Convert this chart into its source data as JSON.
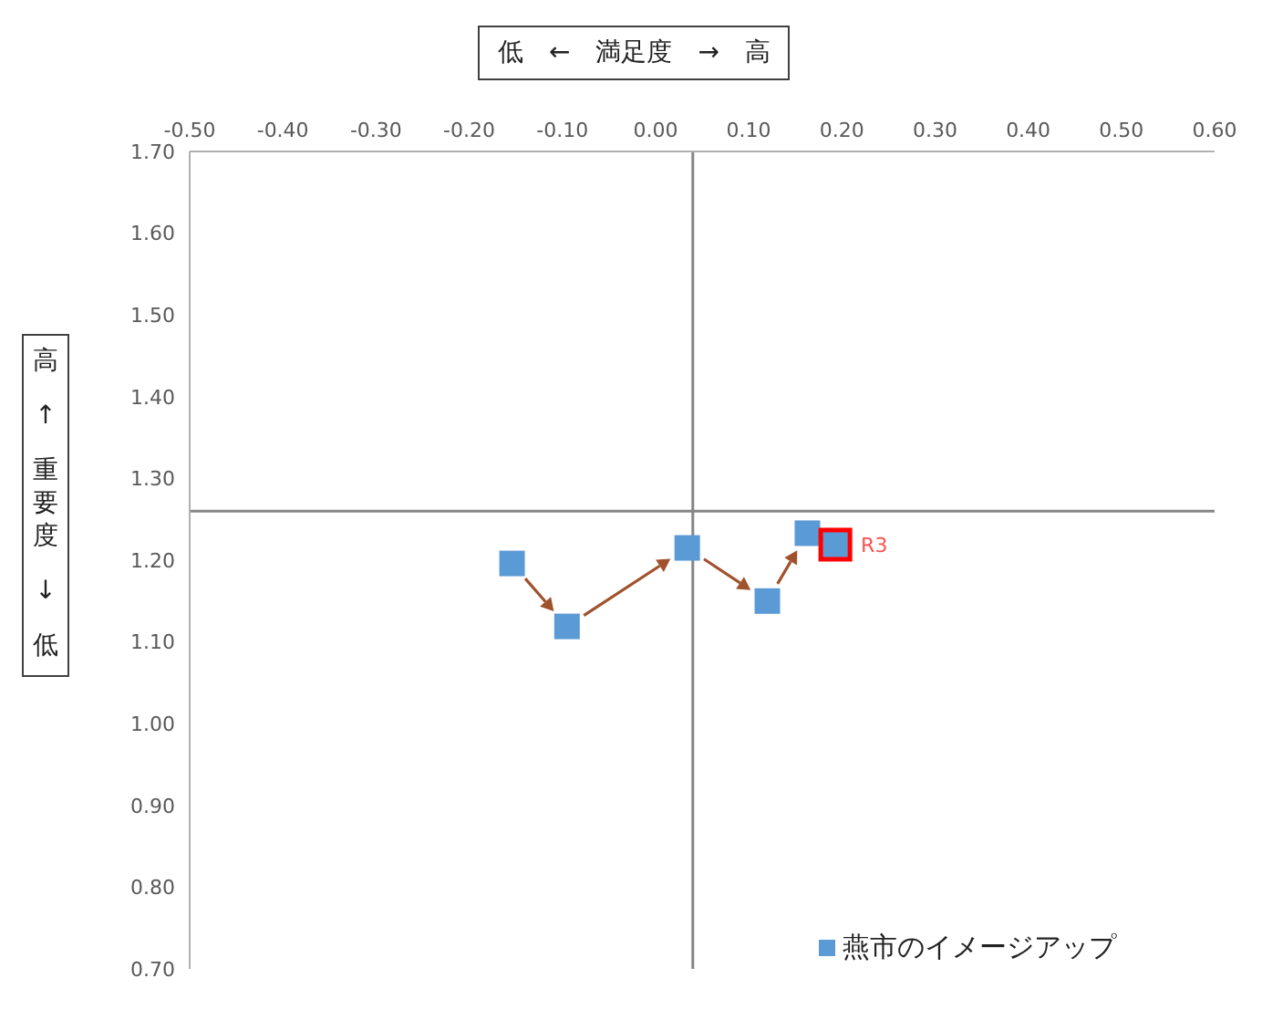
{
  "chart_data": {
    "type": "scatter",
    "xlabel": "低　←　満足度　→　高",
    "ylabel": "高 ↑ 重要度 ↓ 低",
    "series": [
      {
        "name": "燕市のイメージアップ",
        "color": "#5b9bd5",
        "x": [
          -0.154,
          -0.095,
          0.034,
          0.12,
          0.163,
          0.193
        ],
        "values": [
          1.196,
          1.119,
          1.215,
          1.15,
          1.233,
          1.219
        ]
      }
    ],
    "xlim": [
      -0.5,
      0.6
    ],
    "xticks": [
      {
        "value": -0.5,
        "label": "-0.50"
      },
      {
        "value": -0.4,
        "label": "-0.40"
      },
      {
        "value": -0.3,
        "label": "-0.30"
      },
      {
        "value": -0.2,
        "label": "-0.20"
      },
      {
        "value": -0.1,
        "label": "-0.10"
      },
      {
        "value": 0,
        "label": "0.00"
      },
      {
        "value": 0.1,
        "label": "0.10"
      },
      {
        "value": 0.2,
        "label": "0.20"
      },
      {
        "value": 0.3,
        "label": "0.30"
      },
      {
        "value": 0.4,
        "label": "0.40"
      },
      {
        "value": 0.5,
        "label": "0.50"
      },
      {
        "value": 0.6,
        "label": "0.60"
      }
    ],
    "ylim": [
      0.7,
      1.7
    ],
    "yticks": [
      {
        "value": 0.7,
        "label": "0.70"
      },
      {
        "value": 0.8,
        "label": "0.80"
      },
      {
        "value": 0.9,
        "label": "0.90"
      },
      {
        "value": 1,
        "label": "1.00"
      },
      {
        "value": 1.1,
        "label": "1.10"
      },
      {
        "value": 1.2,
        "label": "1.20"
      },
      {
        "value": 1.3,
        "label": "1.30"
      },
      {
        "value": 1.4,
        "label": "1.40"
      },
      {
        "value": 1.5,
        "label": "1.50"
      },
      {
        "value": 1.6,
        "label": "1.60"
      },
      {
        "value": 1.7,
        "label": "1.70"
      }
    ],
    "ref_lines": [
      {
        "axis": "x",
        "value": 0.04,
        "color": "#868686"
      },
      {
        "axis": "y",
        "value": 1.26,
        "color": "#868686"
      }
    ],
    "annotations": [
      {
        "text": "R3",
        "x": 0.193,
        "y": 1.219
      }
    ],
    "marker": "square",
    "legend": "bottom right",
    "grid": false
  }
}
